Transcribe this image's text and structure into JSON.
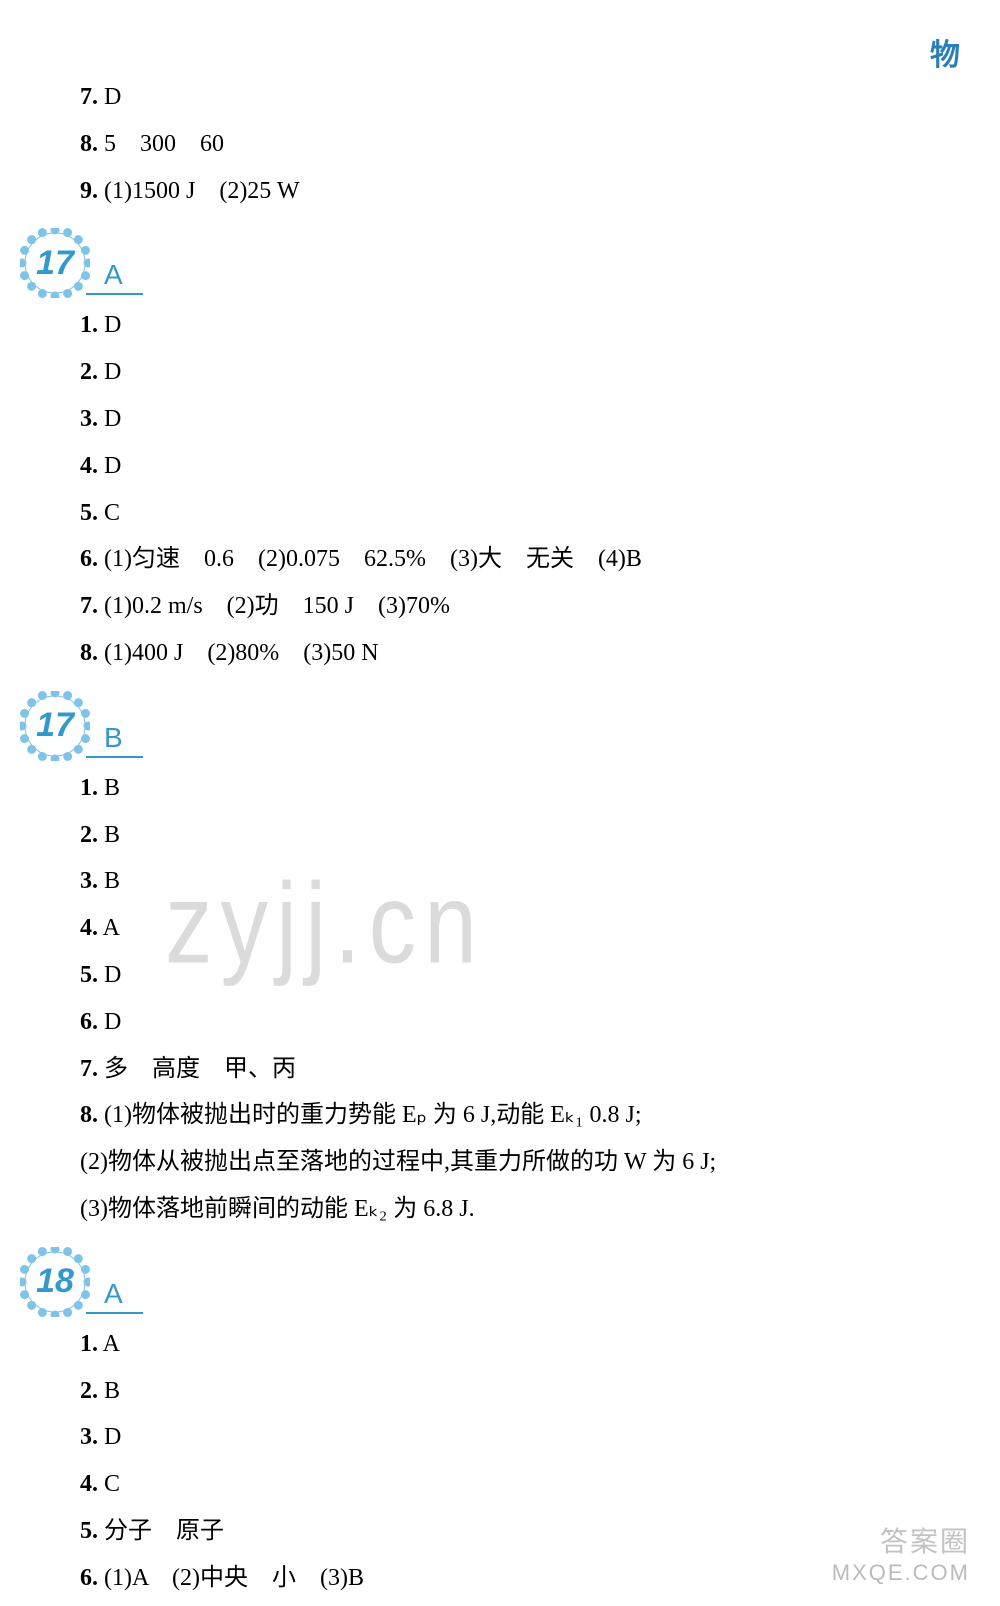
{
  "topLabel": "物",
  "watermark": "zyjj.cn",
  "bottomWatermark": {
    "cn": "答案圈",
    "url": "MXQE.COM"
  },
  "colors": {
    "accent": "#3399cc",
    "labelBlue": "#2980b9",
    "text": "#000000",
    "watermark": "rgba(90,90,90,0.22)"
  },
  "preLines": [
    {
      "num": "7.",
      "text": "D"
    },
    {
      "num": "8.",
      "text": "5　300　60"
    },
    {
      "num": "9.",
      "text": "(1)1500 J　(2)25 W"
    }
  ],
  "sections": [
    {
      "badge": "17",
      "letter": "A",
      "lines": [
        {
          "num": "1.",
          "text": "D"
        },
        {
          "num": "2.",
          "text": "D"
        },
        {
          "num": "3.",
          "text": "D"
        },
        {
          "num": "4.",
          "text": "D"
        },
        {
          "num": "5.",
          "text": "C"
        },
        {
          "num": "6.",
          "text": "(1)匀速　0.6　(2)0.075　62.5%　(3)大　无关　(4)B"
        },
        {
          "num": "7.",
          "text": "(1)0.2 m/s　(2)功　150 J　(3)70%"
        },
        {
          "num": "8.",
          "text": "(1)400 J　(2)80%　(3)50 N"
        }
      ]
    },
    {
      "badge": "17",
      "letter": "B",
      "lines": [
        {
          "num": "1.",
          "text": "B"
        },
        {
          "num": "2.",
          "text": "B"
        },
        {
          "num": "3.",
          "text": "B"
        },
        {
          "num": "4.",
          "text": "A"
        },
        {
          "num": "5.",
          "text": "D"
        },
        {
          "num": "6.",
          "text": "D"
        },
        {
          "num": "7.",
          "text": "多　高度　甲、丙"
        },
        {
          "num": "8.",
          "text": "(1)物体被抛出时的重力势能 Eₚ 为 6 J,动能 Eₖ₁ 0.8 J;"
        },
        {
          "num": "",
          "text": "(2)物体从被抛出点至落地的过程中,其重力所做的功 W 为 6 J;"
        },
        {
          "num": "",
          "text": "(3)物体落地前瞬间的动能 Eₖ₂ 为 6.8 J."
        }
      ]
    },
    {
      "badge": "18",
      "letter": "A",
      "lines": [
        {
          "num": "1.",
          "text": "A"
        },
        {
          "num": "2.",
          "text": "B"
        },
        {
          "num": "3.",
          "text": "D"
        },
        {
          "num": "4.",
          "text": "C"
        },
        {
          "num": "5.",
          "text": "分子　原子"
        },
        {
          "num": "6.",
          "text": "(1)A　(2)中央　小　(3)B"
        }
      ]
    }
  ]
}
